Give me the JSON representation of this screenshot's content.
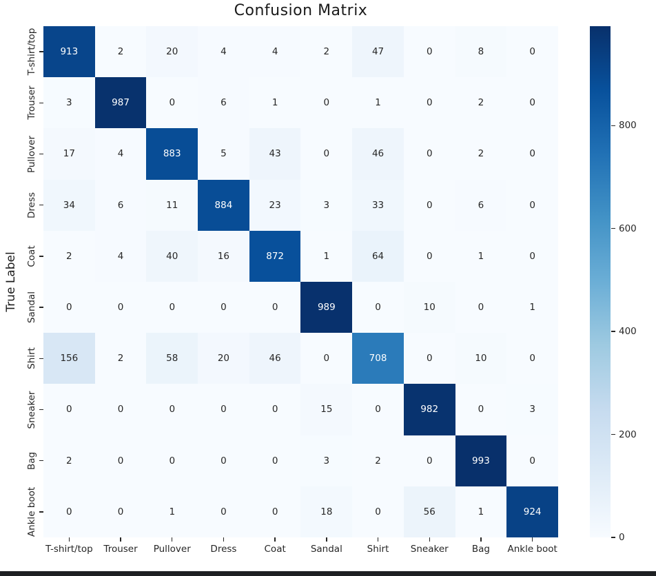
{
  "chart_data": {
    "type": "heatmap",
    "title": "Confusion Matrix",
    "xlabel": "",
    "ylabel": "True Label",
    "categories": [
      "T-shirt/top",
      "Trouser",
      "Pullover",
      "Dress",
      "Coat",
      "Sandal",
      "Shirt",
      "Sneaker",
      "Bag",
      "Ankle boot"
    ],
    "matrix": [
      [
        913,
        2,
        20,
        4,
        4,
        2,
        47,
        0,
        8,
        0
      ],
      [
        3,
        987,
        0,
        6,
        1,
        0,
        1,
        0,
        2,
        0
      ],
      [
        17,
        4,
        883,
        5,
        43,
        0,
        46,
        0,
        2,
        0
      ],
      [
        34,
        6,
        11,
        884,
        23,
        3,
        33,
        0,
        6,
        0
      ],
      [
        2,
        4,
        40,
        16,
        872,
        1,
        64,
        0,
        1,
        0
      ],
      [
        0,
        0,
        0,
        0,
        0,
        989,
        0,
        10,
        0,
        1
      ],
      [
        156,
        2,
        58,
        20,
        46,
        0,
        708,
        0,
        10,
        0
      ],
      [
        0,
        0,
        0,
        0,
        0,
        15,
        0,
        982,
        0,
        3
      ],
      [
        2,
        0,
        0,
        0,
        0,
        3,
        2,
        0,
        993,
        0
      ],
      [
        0,
        0,
        1,
        0,
        0,
        18,
        0,
        56,
        1,
        924
      ]
    ],
    "vmin": 0,
    "vmax": 993,
    "colorbar_ticks": [
      0,
      200,
      400,
      600,
      800
    ],
    "colormap": "Blues",
    "colormap_stops": [
      "#f7fbff",
      "#deebf7",
      "#c6dbef",
      "#9ecae1",
      "#6baed6",
      "#4292c6",
      "#2171b5",
      "#08519c",
      "#08306b"
    ],
    "annotation_color_dark": "#262626",
    "annotation_color_light": "#ffffff",
    "legend_position": "colorbar-right",
    "grid": false
  },
  "page": {
    "bottom_strip_color": "#1e2023"
  }
}
